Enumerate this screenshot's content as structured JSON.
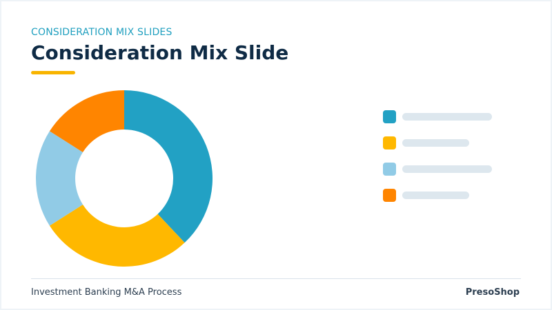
{
  "header": {
    "kicker": "CONSIDERATION MIX SLIDES",
    "title": "Consideration Mix Slide"
  },
  "footer": {
    "left_text": "Investment Banking M&A Process",
    "brand": "PresoShop"
  },
  "colors": {
    "teal": "#22a1c4",
    "yellow": "#ffb800",
    "light_blue": "#91cbe6",
    "orange": "#ff8500",
    "accent_underline": "#f8b400",
    "legend_placeholder": "#dde7ee"
  },
  "chart_data": {
    "type": "donut",
    "series": [
      {
        "value": 38,
        "color": "#22a1c4"
      },
      {
        "value": 28,
        "color": "#ffb800"
      },
      {
        "value": 18,
        "color": "#91cbe6"
      },
      {
        "value": 16,
        "color": "#ff8500"
      }
    ],
    "legend": {
      "position": "right",
      "items": [
        {
          "color": "#22a1c4",
          "label": ""
        },
        {
          "color": "#ffb800",
          "label": ""
        },
        {
          "color": "#91cbe6",
          "label": ""
        },
        {
          "color": "#ff8500",
          "label": ""
        }
      ]
    }
  }
}
